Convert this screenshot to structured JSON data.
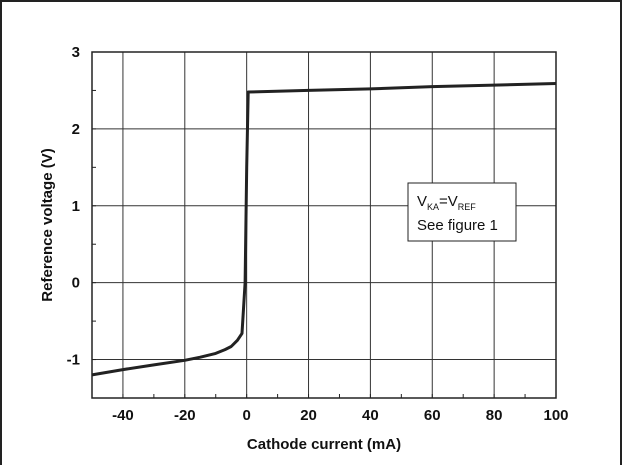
{
  "chart_data": {
    "type": "line",
    "xlabel": "Cathode current (mA)",
    "ylabel": "Reference voltage (V)",
    "xlim": [
      -50,
      100
    ],
    "ylim": [
      -1.5,
      3
    ],
    "x_ticks": [
      -40,
      -20,
      0,
      20,
      40,
      60,
      80,
      100
    ],
    "x_tick_labels": [
      "-40",
      "-20",
      "0",
      "20",
      "40",
      "60",
      "80",
      "100"
    ],
    "y_ticks": [
      -1,
      0,
      1,
      2,
      3
    ],
    "y_tick_labels": [
      "-1",
      "0",
      "1",
      "2",
      "3"
    ],
    "grid": true,
    "series": [
      {
        "color": "#222222",
        "points": [
          [
            -50,
            -1.2
          ],
          [
            -40,
            -1.13
          ],
          [
            -30,
            -1.07
          ],
          [
            -20,
            -1.01
          ],
          [
            -15,
            -0.97
          ],
          [
            -10,
            -0.92
          ],
          [
            -7,
            -0.87
          ],
          [
            -5,
            -0.83
          ],
          [
            -3,
            -0.75
          ],
          [
            -1.5,
            -0.66
          ],
          [
            -0.5,
            0.0
          ],
          [
            0,
            1.5
          ],
          [
            0.5,
            2.48
          ],
          [
            20,
            2.5
          ],
          [
            40,
            2.52
          ],
          [
            60,
            2.55
          ],
          [
            80,
            2.57
          ],
          [
            100,
            2.59
          ]
        ]
      }
    ],
    "annotation": {
      "line1_main_a": "V",
      "line1_sub_a": "KA",
      "line1_main_b": "=V",
      "line1_sub_b": "REF",
      "line2": "See figure 1"
    }
  }
}
